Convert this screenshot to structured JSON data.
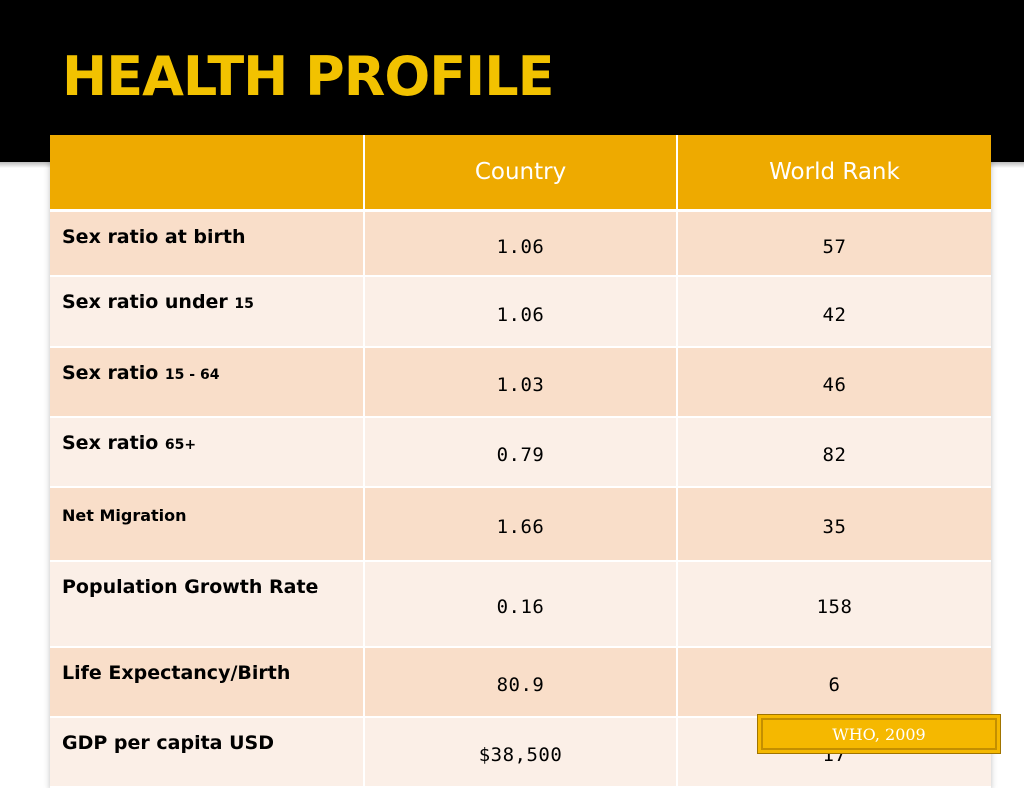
{
  "slide": {
    "title": "HEALTH PROFILE"
  },
  "table": {
    "headers": [
      "",
      "Country",
      "World Rank"
    ],
    "rows": [
      {
        "label": "Sex ratio at birth",
        "label_suffix": "",
        "country": "1.06",
        "rank": "57"
      },
      {
        "label": "Sex ratio under ",
        "label_suffix": "15",
        "country": "1.06",
        "rank": "42"
      },
      {
        "label": "Sex ratio ",
        "label_suffix": "15 - 64",
        "country": "1.03",
        "rank": "46"
      },
      {
        "label": "Sex ratio ",
        "label_suffix": "65+",
        "country": "0.79",
        "rank": "82"
      },
      {
        "label": "Net Migration",
        "label_suffix": "",
        "country": "1.66",
        "rank": "35"
      },
      {
        "label": "Population Growth Rate",
        "label_suffix": "",
        "country": "0.16",
        "rank": "158"
      },
      {
        "label": "Life Expectancy/Birth",
        "label_suffix": "",
        "country": "80.9",
        "rank": "6"
      },
      {
        "label": "GDP per capita USD",
        "label_suffix": "",
        "country": "$38,500",
        "rank": "17"
      }
    ]
  },
  "source": {
    "label": "WHO, 2009"
  },
  "colors": {
    "title": "#f2c200",
    "header_background": "#eeaa00",
    "row_odd": "#f9dec9",
    "row_even": "#fbefe7",
    "source_box": "#f5b800"
  }
}
